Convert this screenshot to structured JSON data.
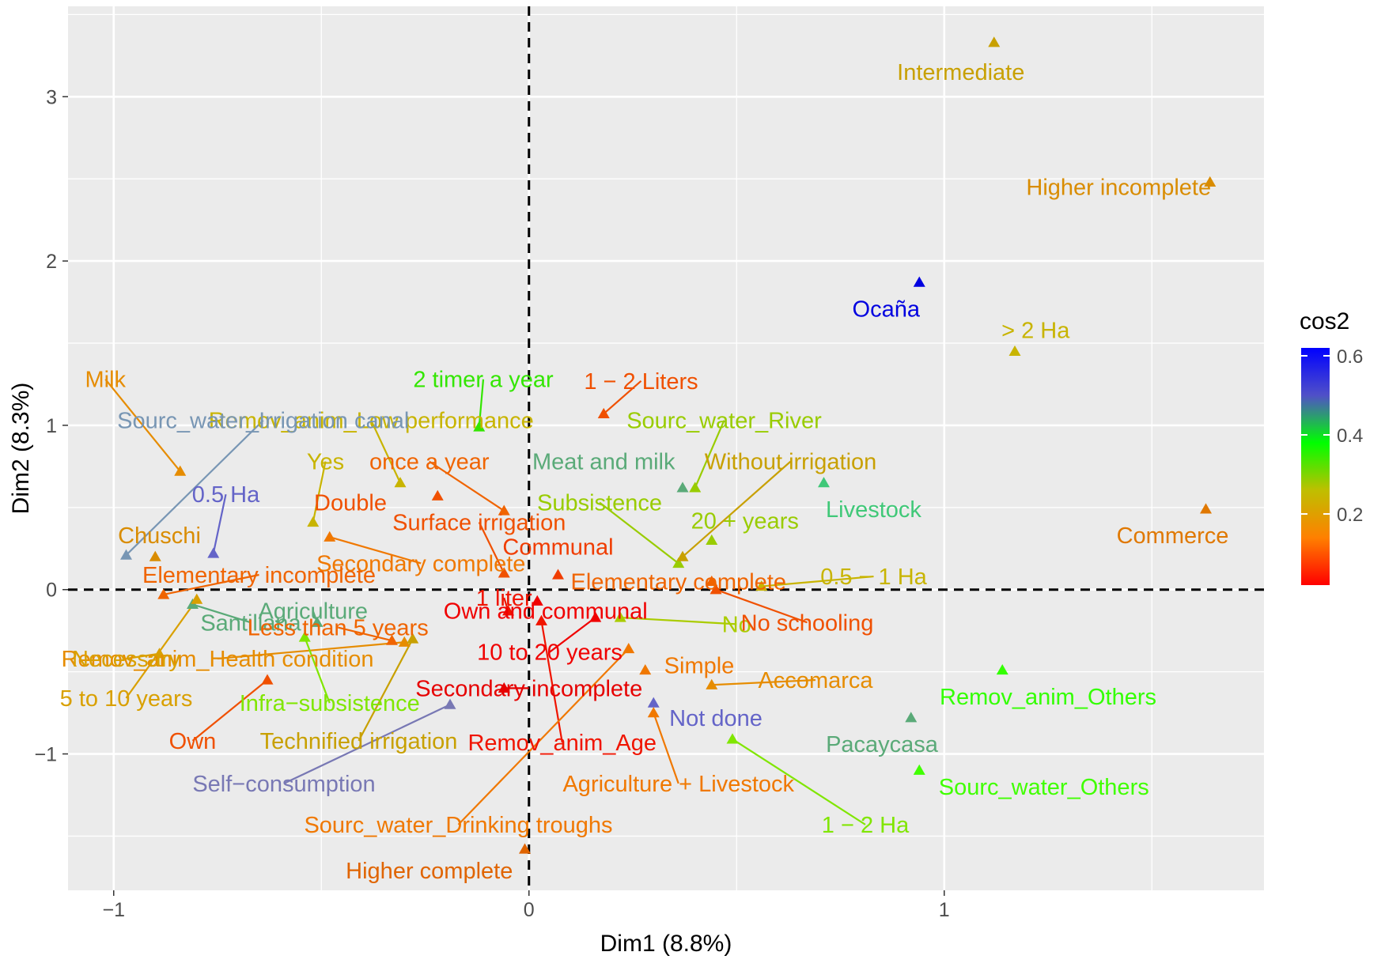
{
  "chart_data": {
    "type": "scatter",
    "xlabel": "Dim1 (8.8%)",
    "ylabel": "Dim2 (8.3%)",
    "xlim": [
      -1.11,
      1.77
    ],
    "ylim": [
      -1.83,
      3.55
    ],
    "xticks": [
      -1,
      0,
      1
    ],
    "yticks": [
      -1,
      0,
      1,
      2,
      3
    ],
    "grid": true,
    "reference_lines": {
      "x": 0,
      "y": 0,
      "style": "dashed"
    },
    "legend": {
      "title": "cos2",
      "position": "right",
      "type": "colorbar",
      "ticks": [
        0.2,
        0.4,
        0.6
      ],
      "range": [
        0.02,
        0.62
      ],
      "gradient": [
        "#ff0000",
        "#ff8000",
        "#bfbf00",
        "#00ff00",
        "#5050c8",
        "#0000ff"
      ]
    },
    "points": [
      {
        "label": "Intermediate",
        "x": 1.12,
        "y": 3.33,
        "color": "#c8a000",
        "lx": 1.04,
        "ly": 3.15,
        "leader": false
      },
      {
        "label": "Higher incomplete",
        "x": 1.64,
        "y": 2.48,
        "color": "#d98c00",
        "lx": 1.42,
        "ly": 2.45,
        "leader": false
      },
      {
        "label": "Ocaña",
        "x": 0.94,
        "y": 1.87,
        "color": "#0000e0",
        "lx": 0.86,
        "ly": 1.71,
        "leader": false
      },
      {
        "label": "> 2 Ha",
        "x": 1.17,
        "y": 1.45,
        "color": "#c8b400",
        "lx": 1.22,
        "ly": 1.58,
        "leader": false
      },
      {
        "label": "Commerce",
        "x": 1.63,
        "y": 0.49,
        "color": "#e07800",
        "lx": 1.55,
        "ly": 0.33,
        "leader": false
      },
      {
        "label": "Livestock",
        "x": 0.71,
        "y": 0.65,
        "color": "#40c878",
        "lx": 0.83,
        "ly": 0.49,
        "leader": false
      },
      {
        "label": "Remov_anim_Others",
        "x": 1.14,
        "y": -0.49,
        "color": "#33ff00",
        "lx": 1.25,
        "ly": -0.65,
        "leader": false
      },
      {
        "label": "Pacaycasa",
        "x": 0.92,
        "y": -0.78,
        "color": "#5aaa78",
        "lx": 0.85,
        "ly": -0.94,
        "leader": false
      },
      {
        "label": "Sourc_water_Others",
        "x": 0.94,
        "y": -1.1,
        "color": "#40ff00",
        "lx": 1.24,
        "ly": -1.2,
        "leader": false
      },
      {
        "label": "1 − 2 Ha",
        "x": 0.49,
        "y": -0.91,
        "color": "#80e600",
        "lx": 0.81,
        "ly": -1.43,
        "leader": true
      },
      {
        "label": "Not done",
        "x": 0.3,
        "y": -0.69,
        "color": "#6464c8",
        "lx": 0.45,
        "ly": -0.78,
        "leader": false
      },
      {
        "label": "Agriculture + Livestock",
        "x": 0.3,
        "y": -0.75,
        "color": "#f07800",
        "lx": 0.36,
        "ly": -1.18,
        "leader": true
      },
      {
        "label": "Simple",
        "x": 0.28,
        "y": -0.49,
        "color": "#f07800",
        "lx": 0.41,
        "ly": -0.46,
        "leader": false
      },
      {
        "label": "Accomarca",
        "x": 0.44,
        "y": -0.58,
        "color": "#e68c00",
        "lx": 0.69,
        "ly": -0.55,
        "leader": true
      },
      {
        "label": "No",
        "x": 0.22,
        "y": -0.17,
        "color": "#aacc00",
        "lx": 0.5,
        "ly": -0.21,
        "leader": true
      },
      {
        "label": "No schooling",
        "x": 0.45,
        "y": 0.0,
        "color": "#f05000",
        "lx": 0.67,
        "ly": -0.2,
        "leader": true
      },
      {
        "label": "0.5 − 1 Ha",
        "x": 0.56,
        "y": 0.02,
        "color": "#c8b400",
        "lx": 0.83,
        "ly": 0.08,
        "leader": true
      },
      {
        "label": "Elementary complete",
        "x": 0.44,
        "y": 0.05,
        "color": "#f06400",
        "lx": 0.36,
        "ly": 0.05,
        "leader": false
      },
      {
        "label": "20 + years",
        "x": 0.44,
        "y": 0.3,
        "color": "#99cc00",
        "lx": 0.52,
        "ly": 0.42,
        "leader": false
      },
      {
        "label": "Subsistence",
        "x": 0.36,
        "y": 0.16,
        "color": "#99cc00",
        "lx": 0.17,
        "ly": 0.53,
        "leader": true
      },
      {
        "label": "Without irrigation",
        "x": 0.37,
        "y": 0.2,
        "color": "#c8a000",
        "lx": 0.63,
        "ly": 0.78,
        "leader": true
      },
      {
        "label": "Meat and milk",
        "x": 0.37,
        "y": 0.62,
        "color": "#5aaa78",
        "lx": 0.18,
        "ly": 0.78,
        "leader": false
      },
      {
        "label": "Sourc_water_River",
        "x": 0.4,
        "y": 0.62,
        "color": "#99cc00",
        "lx": 0.47,
        "ly": 1.03,
        "leader": true
      },
      {
        "label": "1 − 2 Liters",
        "x": 0.18,
        "y": 1.07,
        "color": "#f05000",
        "lx": 0.27,
        "ly": 1.27,
        "leader": true
      },
      {
        "label": "2 timer a year",
        "x": -0.12,
        "y": 0.99,
        "color": "#33e600",
        "lx": -0.11,
        "ly": 1.28,
        "leader": true
      },
      {
        "label": "Remov_anim_Low performance",
        "x": -0.31,
        "y": 0.65,
        "color": "#c8b400",
        "lx": -0.38,
        "ly": 1.03,
        "leader": true
      },
      {
        "label": "Sourc_water_Irrigation canal",
        "x": -0.97,
        "y": 0.21,
        "color": "#7896b4",
        "lx": -0.64,
        "ly": 1.03,
        "leader": true
      },
      {
        "label": "Milk",
        "x": -0.84,
        "y": 0.72,
        "color": "#e68c00",
        "lx": -1.02,
        "ly": 1.28,
        "leader": true
      },
      {
        "label": "once a year",
        "x": -0.06,
        "y": 0.48,
        "color": "#f06400",
        "lx": -0.24,
        "ly": 0.78,
        "leader": true
      },
      {
        "label": "Yes",
        "x": -0.52,
        "y": 0.41,
        "color": "#c8b400",
        "lx": -0.49,
        "ly": 0.78,
        "leader": true
      },
      {
        "label": "Double",
        "x": -0.22,
        "y": 0.57,
        "color": "#f05000",
        "lx": -0.43,
        "ly": 0.53,
        "leader": false
      },
      {
        "label": "Surface irrigation",
        "x": -0.06,
        "y": 0.1,
        "color": "#f05000",
        "lx": -0.12,
        "ly": 0.41,
        "leader": true
      },
      {
        "label": "0.5 Ha",
        "x": -0.76,
        "y": 0.22,
        "color": "#6464c8",
        "lx": -0.73,
        "ly": 0.58,
        "leader": true
      },
      {
        "label": "Chuschi",
        "x": -0.9,
        "y": 0.2,
        "color": "#d98c00",
        "lx": -0.89,
        "ly": 0.33,
        "leader": false
      },
      {
        "label": "Secondary complete",
        "x": -0.48,
        "y": 0.32,
        "color": "#f07800",
        "lx": -0.26,
        "ly": 0.16,
        "leader": true
      },
      {
        "label": "Communal",
        "x": 0.07,
        "y": 0.09,
        "color": "#f03c00",
        "lx": 0.07,
        "ly": 0.26,
        "leader": false
      },
      {
        "label": "Elementary incomplete",
        "x": -0.88,
        "y": -0.03,
        "color": "#f06400",
        "lx": -0.65,
        "ly": 0.09,
        "leader": true
      },
      {
        "label": "1 liter",
        "x": -0.05,
        "y": -0.13,
        "color": "#f01400",
        "lx": -0.06,
        "ly": -0.05,
        "leader": true
      },
      {
        "label": "Own and communal",
        "x": 0.02,
        "y": -0.07,
        "color": "#f00000",
        "lx": 0.04,
        "ly": -0.13,
        "leader": false
      },
      {
        "label": "Santillana",
        "x": -0.81,
        "y": -0.09,
        "color": "#5aaa78",
        "lx": -0.67,
        "ly": -0.2,
        "leader": true
      },
      {
        "label": "Agriculture",
        "x": -0.51,
        "y": -0.2,
        "color": "#5aaa78",
        "lx": -0.52,
        "ly": -0.13,
        "leader": true
      },
      {
        "label": "Less than 5 years",
        "x": -0.33,
        "y": -0.31,
        "color": "#f06400",
        "lx": -0.46,
        "ly": -0.23,
        "leader": true
      },
      {
        "label": "10 to 20 years",
        "x": 0.16,
        "y": -0.17,
        "color": "#f00000",
        "lx": 0.05,
        "ly": -0.38,
        "leader": true
      },
      {
        "label": "Remov_anim_Health condition",
        "x": -0.3,
        "y": -0.32,
        "color": "#e68c00",
        "lx": -0.75,
        "ly": -0.42,
        "leader": true
      },
      {
        "label": "Necessary",
        "x": -0.89,
        "y": -0.39,
        "color": "#d9a000",
        "lx": -0.97,
        "ly": -0.42,
        "leader": true
      },
      {
        "label": "Infra−subsistence",
        "x": -0.54,
        "y": -0.29,
        "color": "#80e600",
        "lx": -0.48,
        "ly": -0.69,
        "leader": true
      },
      {
        "label": "5 to 10 years",
        "x": -0.8,
        "y": -0.06,
        "color": "#d9a000",
        "lx": -0.97,
        "ly": -0.66,
        "leader": true
      },
      {
        "label": "Secondary incomplete",
        "x": -0.06,
        "y": -0.6,
        "color": "#e60000",
        "lx": 0.0,
        "ly": -0.6,
        "leader": true
      },
      {
        "label": "Own",
        "x": -0.63,
        "y": -0.55,
        "color": "#f05000",
        "lx": -0.81,
        "ly": -0.92,
        "leader": true
      },
      {
        "label": "Technified irrigation",
        "x": -0.28,
        "y": -0.3,
        "color": "#c8a000",
        "lx": -0.41,
        "ly": -0.92,
        "leader": true
      },
      {
        "label": "Remov_anim_Age",
        "x": 0.03,
        "y": -0.19,
        "color": "#f01400",
        "lx": 0.08,
        "ly": -0.93,
        "leader": true
      },
      {
        "label": "Self−consumption",
        "x": -0.19,
        "y": -0.7,
        "color": "#7878b4",
        "lx": -0.59,
        "ly": -1.18,
        "leader": true
      },
      {
        "label": "Sourc_water_Drinking troughs",
        "x": 0.24,
        "y": -0.36,
        "color": "#f07800",
        "lx": -0.17,
        "ly": -1.43,
        "leader": true
      },
      {
        "label": "Higher complete",
        "x": -0.01,
        "y": -1.58,
        "color": "#e06400",
        "lx": -0.24,
        "ly": -1.71,
        "leader": false
      }
    ]
  }
}
